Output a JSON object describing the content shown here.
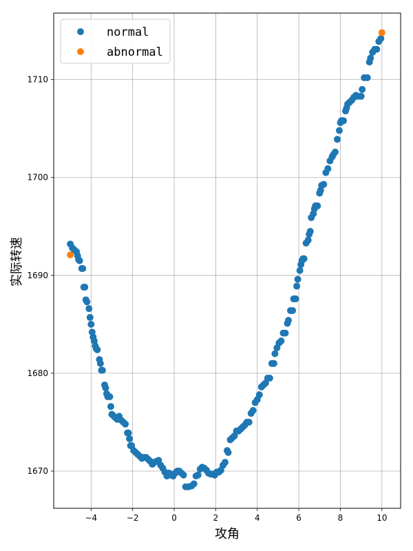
{
  "chart_data": {
    "type": "scatter",
    "title": "",
    "xlabel": "攻角",
    "ylabel": "实际转速",
    "xlim": [
      -5.8,
      10.9
    ],
    "ylim": [
      1666.2,
      1716.8
    ],
    "xticks": [
      -4,
      -2,
      0,
      2,
      4,
      6,
      8,
      10
    ],
    "yticks": [
      1670,
      1680,
      1690,
      1700,
      1710
    ],
    "grid": true,
    "legend_position": "top-left",
    "series": [
      {
        "name": "normal",
        "color": "#1f77b4",
        "points": [
          [
            -5.0,
            1693.2
          ],
          [
            -4.9,
            1692.8
          ],
          [
            -4.8,
            1692.6
          ],
          [
            -4.7,
            1692.4
          ],
          [
            -4.65,
            1692.0
          ],
          [
            -4.6,
            1691.6
          ],
          [
            -4.55,
            1691.5
          ],
          [
            -4.45,
            1690.7
          ],
          [
            -4.4,
            1690.7
          ],
          [
            -4.35,
            1688.8
          ],
          [
            -4.3,
            1688.8
          ],
          [
            -4.25,
            1687.5
          ],
          [
            -4.2,
            1687.3
          ],
          [
            -4.1,
            1686.6
          ],
          [
            -4.05,
            1685.7
          ],
          [
            -4.0,
            1685.0
          ],
          [
            -3.95,
            1684.2
          ],
          [
            -3.9,
            1683.7
          ],
          [
            -3.85,
            1683.3
          ],
          [
            -3.8,
            1682.8
          ],
          [
            -3.75,
            1682.5
          ],
          [
            -3.7,
            1682.4
          ],
          [
            -3.6,
            1681.4
          ],
          [
            -3.55,
            1681.0
          ],
          [
            -3.5,
            1680.3
          ],
          [
            -3.45,
            1680.3
          ],
          [
            -3.35,
            1678.8
          ],
          [
            -3.3,
            1678.5
          ],
          [
            -3.25,
            1677.9
          ],
          [
            -3.2,
            1677.6
          ],
          [
            -3.1,
            1677.6
          ],
          [
            -3.05,
            1676.6
          ],
          [
            -3.0,
            1675.8
          ],
          [
            -2.95,
            1675.7
          ],
          [
            -2.85,
            1675.5
          ],
          [
            -2.75,
            1675.3
          ],
          [
            -2.65,
            1675.6
          ],
          [
            -2.55,
            1675.2
          ],
          [
            -2.45,
            1675.0
          ],
          [
            -2.35,
            1674.8
          ],
          [
            -2.25,
            1673.9
          ],
          [
            -2.2,
            1673.9
          ],
          [
            -2.15,
            1673.3
          ],
          [
            -2.1,
            1672.6
          ],
          [
            -2.05,
            1672.6
          ],
          [
            -1.95,
            1672.1
          ],
          [
            -1.85,
            1671.9
          ],
          [
            -1.75,
            1671.7
          ],
          [
            -1.65,
            1671.5
          ],
          [
            -1.55,
            1671.3
          ],
          [
            -1.45,
            1671.4
          ],
          [
            -1.35,
            1671.4
          ],
          [
            -1.25,
            1671.2
          ],
          [
            -1.15,
            1671.0
          ],
          [
            -1.05,
            1670.7
          ],
          [
            -0.95,
            1670.9
          ],
          [
            -0.85,
            1671.0
          ],
          [
            -0.75,
            1671.1
          ],
          [
            -0.65,
            1670.6
          ],
          [
            -0.55,
            1670.3
          ],
          [
            -0.45,
            1669.9
          ],
          [
            -0.35,
            1669.5
          ],
          [
            -0.25,
            1669.8
          ],
          [
            -0.15,
            1669.6
          ],
          [
            -0.05,
            1669.5
          ],
          [
            0.05,
            1669.8
          ],
          [
            0.15,
            1670.0
          ],
          [
            0.25,
            1670.0
          ],
          [
            0.35,
            1669.8
          ],
          [
            0.45,
            1669.6
          ],
          [
            0.55,
            1668.4
          ],
          [
            0.7,
            1668.4
          ],
          [
            0.85,
            1668.5
          ],
          [
            0.95,
            1668.7
          ],
          [
            1.05,
            1669.5
          ],
          [
            1.15,
            1669.6
          ],
          [
            1.25,
            1670.2
          ],
          [
            1.35,
            1670.4
          ],
          [
            1.45,
            1670.3
          ],
          [
            1.55,
            1670.1
          ],
          [
            1.65,
            1669.8
          ],
          [
            1.75,
            1669.7
          ],
          [
            1.85,
            1669.7
          ],
          [
            1.95,
            1669.6
          ],
          [
            2.05,
            1669.9
          ],
          [
            2.15,
            1669.9
          ],
          [
            2.25,
            1670.1
          ],
          [
            2.35,
            1670.6
          ],
          [
            2.45,
            1670.9
          ],
          [
            2.55,
            1672.1
          ],
          [
            2.6,
            1671.9
          ],
          [
            2.7,
            1673.2
          ],
          [
            2.8,
            1673.4
          ],
          [
            2.9,
            1673.6
          ],
          [
            3.0,
            1674.1
          ],
          [
            3.1,
            1674.1
          ],
          [
            3.2,
            1674.3
          ],
          [
            3.3,
            1674.5
          ],
          [
            3.4,
            1674.7
          ],
          [
            3.5,
            1675.0
          ],
          [
            3.6,
            1675.0
          ],
          [
            3.7,
            1675.9
          ],
          [
            3.8,
            1676.2
          ],
          [
            3.9,
            1677.0
          ],
          [
            4.0,
            1677.3
          ],
          [
            4.1,
            1677.8
          ],
          [
            4.2,
            1678.6
          ],
          [
            4.3,
            1678.8
          ],
          [
            4.4,
            1679.0
          ],
          [
            4.5,
            1679.5
          ],
          [
            4.6,
            1679.5
          ],
          [
            4.7,
            1681.0
          ],
          [
            4.8,
            1681.0
          ],
          [
            4.85,
            1682.0
          ],
          [
            4.95,
            1682.6
          ],
          [
            5.05,
            1683.1
          ],
          [
            5.15,
            1683.3
          ],
          [
            5.25,
            1684.1
          ],
          [
            5.35,
            1684.1
          ],
          [
            5.45,
            1685.1
          ],
          [
            5.5,
            1685.4
          ],
          [
            5.6,
            1686.4
          ],
          [
            5.7,
            1686.4
          ],
          [
            5.75,
            1687.6
          ],
          [
            5.85,
            1687.6
          ],
          [
            5.9,
            1688.9
          ],
          [
            5.95,
            1689.6
          ],
          [
            6.05,
            1690.5
          ],
          [
            6.1,
            1691.1
          ],
          [
            6.15,
            1691.5
          ],
          [
            6.2,
            1691.7
          ],
          [
            6.25,
            1691.7
          ],
          [
            6.35,
            1693.3
          ],
          [
            6.45,
            1693.6
          ],
          [
            6.5,
            1694.2
          ],
          [
            6.55,
            1694.5
          ],
          [
            6.6,
            1695.9
          ],
          [
            6.7,
            1696.3
          ],
          [
            6.75,
            1696.8
          ],
          [
            6.8,
            1697.1
          ],
          [
            6.9,
            1697.1
          ],
          [
            7.0,
            1698.4
          ],
          [
            7.05,
            1698.7
          ],
          [
            7.1,
            1699.2
          ],
          [
            7.2,
            1699.3
          ],
          [
            7.3,
            1700.5
          ],
          [
            7.4,
            1700.9
          ],
          [
            7.5,
            1701.7
          ],
          [
            7.6,
            1702.1
          ],
          [
            7.65,
            1702.3
          ],
          [
            7.75,
            1702.6
          ],
          [
            7.85,
            1703.9
          ],
          [
            7.95,
            1704.8
          ],
          [
            8.0,
            1705.6
          ],
          [
            8.05,
            1705.8
          ],
          [
            8.1,
            1705.8
          ],
          [
            8.15,
            1705.8
          ],
          [
            8.25,
            1706.8
          ],
          [
            8.3,
            1707.1
          ],
          [
            8.35,
            1707.5
          ],
          [
            8.45,
            1707.7
          ],
          [
            8.55,
            1707.9
          ],
          [
            8.65,
            1708.2
          ],
          [
            8.75,
            1708.4
          ],
          [
            8.85,
            1708.3
          ],
          [
            9.0,
            1708.3
          ],
          [
            9.05,
            1709.0
          ],
          [
            9.15,
            1710.2
          ],
          [
            9.3,
            1710.2
          ],
          [
            9.4,
            1711.8
          ],
          [
            9.45,
            1712.2
          ],
          [
            9.55,
            1712.8
          ],
          [
            9.65,
            1713.1
          ],
          [
            9.75,
            1713.1
          ],
          [
            9.85,
            1713.9
          ],
          [
            9.95,
            1714.2
          ]
        ]
      },
      {
        "name": "abnormal",
        "color": "#ff7f0e",
        "points": [
          [
            -5.0,
            1692.1
          ],
          [
            10.0,
            1714.8
          ]
        ]
      }
    ]
  }
}
